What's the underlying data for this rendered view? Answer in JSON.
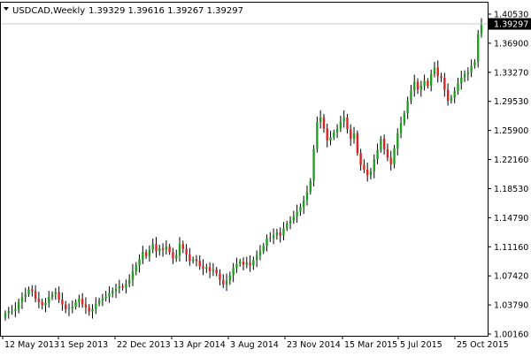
{
  "header": {
    "symbol": "USDCAD,Weekly",
    "ohlc": "1.39329 1.39616 1.39267 1.39297"
  },
  "colors": {
    "bull": "#1e9e1e",
    "bear": "#e0201e",
    "wick": "#000000",
    "current_price_bg": "#000000",
    "current_line": "#c8c8c8"
  },
  "chart_data": {
    "type": "candlestick",
    "title": "USDCAD,Weekly",
    "x_tick_labels": [
      "12 May 2013",
      "1 Sep 2013",
      "22 Dec 2013",
      "13 Apr 2014",
      "3 Aug 2014",
      "23 Nov 2014",
      "15 Mar 2015",
      "5 Jul 2015",
      "25 Oct 2015"
    ],
    "y_tick_labels": [
      "1.40530",
      "1.36900",
      "1.33270",
      "1.29530",
      "1.25900",
      "1.22160",
      "1.18530",
      "1.14790",
      "1.11160",
      "1.07420",
      "1.03790",
      "1.00160"
    ],
    "ylim": [
      1.0016,
      1.4053
    ],
    "current_price": "1.39297",
    "candles_close": [
      1.028,
      1.0305,
      1.031,
      1.033,
      1.042,
      1.048,
      1.052,
      1.058,
      1.056,
      1.046,
      1.042,
      1.038,
      1.041,
      1.048,
      1.052,
      1.0545,
      1.045,
      1.039,
      1.033,
      1.034,
      1.036,
      1.042,
      1.046,
      1.039,
      1.035,
      1.03,
      1.033,
      1.04,
      1.044,
      1.047,
      1.049,
      1.053,
      1.056,
      1.059,
      1.062,
      1.06,
      1.065,
      1.07,
      1.081,
      1.088,
      1.096,
      1.105,
      1.1,
      1.108,
      1.115,
      1.106,
      1.11,
      1.108,
      1.112,
      1.105,
      1.097,
      1.101,
      1.115,
      1.109,
      1.102,
      1.094,
      1.096,
      1.094,
      1.087,
      1.084,
      1.086,
      1.081,
      1.083,
      1.078,
      1.07,
      1.064,
      1.069,
      1.076,
      1.085,
      1.09,
      1.093,
      1.089,
      1.092,
      1.088,
      1.095,
      1.101,
      1.106,
      1.113,
      1.122,
      1.123,
      1.126,
      1.13,
      1.126,
      1.135,
      1.141,
      1.145,
      1.15,
      1.156,
      1.162,
      1.17,
      1.181,
      1.195,
      1.235,
      1.269,
      1.275,
      1.261,
      1.246,
      1.25,
      1.256,
      1.261,
      1.27,
      1.275,
      1.26,
      1.248,
      1.255,
      1.23,
      1.215,
      1.209,
      1.202,
      1.207,
      1.222,
      1.234,
      1.248,
      1.235,
      1.224,
      1.216,
      1.236,
      1.255,
      1.268,
      1.28,
      1.296,
      1.309,
      1.32,
      1.31,
      1.315,
      1.321,
      1.315,
      1.33,
      1.338,
      1.327,
      1.325,
      1.31,
      1.296,
      1.3,
      1.308,
      1.318,
      1.325,
      1.33,
      1.332,
      1.34,
      1.345,
      1.38,
      1.393
    ]
  }
}
